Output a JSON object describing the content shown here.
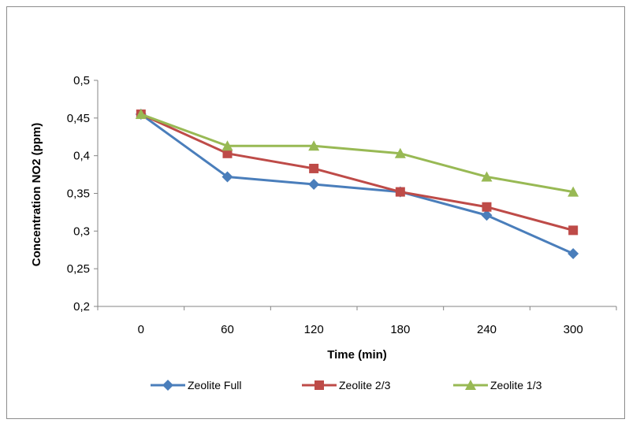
{
  "chart_data": {
    "type": "line",
    "title": "",
    "xlabel": "Time (min)",
    "ylabel": "Concentration NO2 (ppm)",
    "categories": [
      "0",
      "60",
      "120",
      "180",
      "240",
      "300"
    ],
    "y_ticks": [
      "0,5",
      "0,45",
      "0,4",
      "0,35",
      "0,3",
      "0,25",
      "0,2"
    ],
    "ylim": [
      0.2,
      0.5
    ],
    "grid": false,
    "legend_position": "bottom",
    "series": [
      {
        "name": "Zeolite Full",
        "values": [
          0.455,
          0.372,
          0.362,
          0.352,
          0.321,
          0.27
        ],
        "color": "#4A7EBB",
        "marker": "diamond"
      },
      {
        "name": "Zeolite 2/3",
        "values": [
          0.455,
          0.403,
          0.383,
          0.352,
          0.332,
          0.301
        ],
        "color": "#BE4B48",
        "marker": "square"
      },
      {
        "name": "Zeolite 1/3",
        "values": [
          0.455,
          0.413,
          0.413,
          0.403,
          0.372,
          0.352
        ],
        "color": "#98B954",
        "marker": "triangle"
      }
    ]
  }
}
